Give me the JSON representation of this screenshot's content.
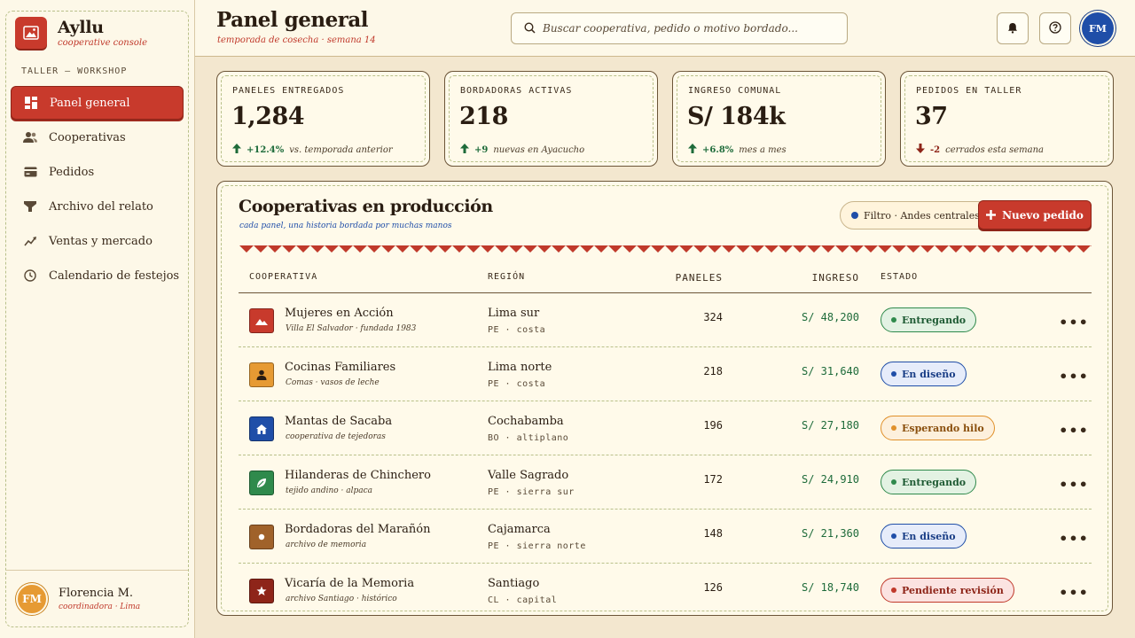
{
  "brand": {
    "title": "Ayllu",
    "subtitle": "cooperative console"
  },
  "sidebar": {
    "section_label": "TALLER — WORKSHOP",
    "items": [
      {
        "label": "Panel general",
        "icon": "dashboard-icon",
        "active": true
      },
      {
        "label": "Cooperativas",
        "icon": "users-icon"
      },
      {
        "label": "Pedidos",
        "icon": "card-icon"
      },
      {
        "label": "Archivo del relato",
        "icon": "filter-icon"
      },
      {
        "label": "Ventas y mercado",
        "icon": "trend-icon"
      },
      {
        "label": "Calendario de festejos",
        "icon": "clock-icon"
      }
    ],
    "user": {
      "initials": "FM",
      "name": "Florencia M.",
      "role": "coordinadora · Lima"
    }
  },
  "header": {
    "title": "Panel general",
    "subtitle": "temporada de cosecha · semana 14",
    "search_placeholder": "Buscar cooperativa, pedido o motivo bordado...",
    "avatar_initials": "FM"
  },
  "stats": [
    {
      "label": "PANELES ENTREGADOS",
      "value": "1,284",
      "trend": "+12.4%",
      "note": "vs. temporada anterior",
      "direction": "up"
    },
    {
      "label": "BORDADORAS ACTIVAS",
      "value": "218",
      "trend": "+9",
      "note": "nuevas en Ayacucho",
      "direction": "up"
    },
    {
      "label": "INGRESO COMUNAL",
      "value": "S/ 184k",
      "trend": "+6.8%",
      "note": "mes a mes",
      "direction": "up"
    },
    {
      "label": "PEDIDOS EN TALLER",
      "value": "37",
      "trend": "-2",
      "note": "cerrados esta semana",
      "direction": "down"
    }
  ],
  "panel": {
    "title": "Cooperativas en producción",
    "subtitle": "cada panel, una historia bordada por muchas manos",
    "filter_label": "Filtro · Andes centrales",
    "new_button_label": "Nuevo pedido",
    "columns": [
      "COOPERATIVA",
      "REGIÓN",
      "PANELES",
      "INGRESO",
      "ESTADO"
    ],
    "rows": [
      {
        "name": "Mujeres en Acción",
        "sub": "Villa El Salvador · fundada 1983",
        "region": "Lima sur",
        "region_sub": "PE · costa",
        "paneles": "324",
        "ingreso": "S/ 48,200",
        "estado": "Entregando",
        "status": "green",
        "icon_color": "#c83a2c",
        "icon": "mountain-icon"
      },
      {
        "name": "Cocinas Familiares",
        "sub": "Comas · vasos de leche",
        "region": "Lima norte",
        "region_sub": "PE · costa",
        "paneles": "218",
        "ingreso": "S/ 31,640",
        "estado": "En diseño",
        "status": "blue",
        "icon_color": "#e69a33",
        "icon": "person-icon"
      },
      {
        "name": "Mantas de Sacaba",
        "sub": "cooperativa de tejedoras",
        "region": "Cochabamba",
        "region_sub": "BO · altiplano",
        "paneles": "196",
        "ingreso": "S/ 27,180",
        "estado": "Esperando hilo",
        "status": "orange",
        "icon_color": "#1f4ea8",
        "icon": "house-icon"
      },
      {
        "name": "Hilanderas de Chinchero",
        "sub": "tejido andino · alpaca",
        "region": "Valle Sagrado",
        "region_sub": "PE · sierra sur",
        "paneles": "172",
        "ingreso": "S/ 24,910",
        "estado": "Entregando",
        "status": "green",
        "icon_color": "#2f8a4c",
        "icon": "leaf-icon"
      },
      {
        "name": "Bordadoras del Marañón",
        "sub": "archivo de memoria",
        "region": "Cajamarca",
        "region_sub": "PE · sierra norte",
        "paneles": "148",
        "ingreso": "S/ 21,360",
        "estado": "En diseño",
        "status": "blue",
        "icon_color": "#a0622a",
        "icon": "dot-icon"
      },
      {
        "name": "Vicaría de la Memoria",
        "sub": "archivo Santiago · histórico",
        "region": "Santiago",
        "region_sub": "CL · capital",
        "paneles": "126",
        "ingreso": "S/ 18,740",
        "estado": "Pendiente revisión",
        "status": "red",
        "icon_color": "#8e2519",
        "icon": "star-icon"
      }
    ]
  },
  "colors": {
    "accent": "#c83a2c",
    "background": "#f3e7cf",
    "card": "#fffaea",
    "blue": "#1f4ea8",
    "green": "#1e6b3a"
  }
}
